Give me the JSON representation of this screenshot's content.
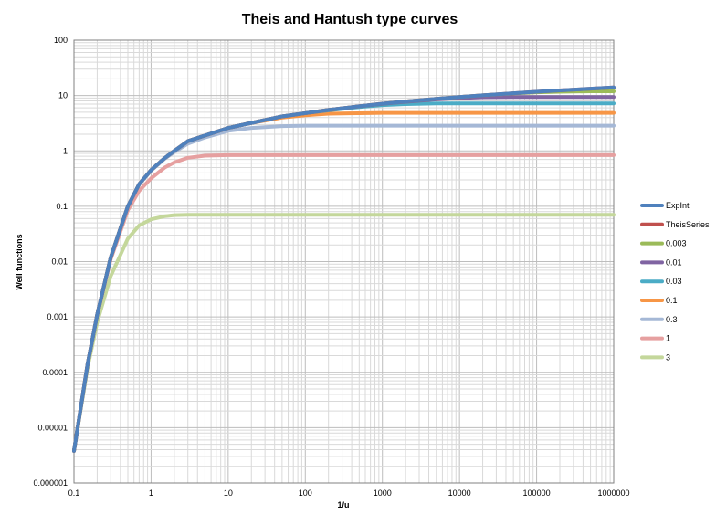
{
  "chart_data": {
    "type": "line",
    "title": "Theis and Hantush type curves",
    "xlabel": "1/u",
    "ylabel": "Well functions",
    "x_scale": "log",
    "y_scale": "log",
    "xlim": [
      0.1,
      1000000
    ],
    "ylim": [
      1e-06,
      100
    ],
    "x_ticks": [
      "0.1",
      "1",
      "10",
      "100",
      "1000",
      "10000",
      "100000",
      "1000000"
    ],
    "y_ticks": [
      "0.000001",
      "0.00001",
      "0.0001",
      "0.001",
      "0.01",
      "0.1",
      "1",
      "10",
      "100"
    ],
    "grid": true,
    "legend_position": "right",
    "x": [
      0.1,
      0.15,
      0.2,
      0.3,
      0.5,
      0.7,
      1,
      1.5,
      2,
      3,
      5,
      10,
      20,
      50,
      100,
      200,
      500,
      1000,
      2000,
      5000,
      10000,
      20000,
      50000,
      100000,
      200000,
      500000,
      1000000
    ],
    "series": [
      {
        "name": "ExpInt",
        "color": "#4f81bd",
        "values": [
          3.8e-06,
          0.00014,
          0.0011,
          0.012,
          0.1,
          0.25,
          0.45,
          0.74,
          1.0,
          1.5,
          1.9,
          2.6,
          3.2,
          4.2,
          4.8,
          5.5,
          6.4,
          7.1,
          7.8,
          8.7,
          9.4,
          10.1,
          11.0,
          11.7,
          12.4,
          13.3,
          14.0
        ]
      },
      {
        "name": "TheisSeries",
        "color": "#c0504d",
        "values": [
          3.8e-06,
          0.00014,
          0.0011,
          0.012,
          0.1,
          0.25,
          0.45,
          0.74,
          1.0,
          1.5,
          1.9,
          2.6,
          3.2,
          4.2,
          4.8,
          5.5,
          6.4,
          7.1,
          7.8,
          8.7,
          9.4,
          10.1,
          11.0,
          11.7,
          12.4,
          13.3,
          14.0
        ]
      },
      {
        "name": "0.003",
        "color": "#9bbb59",
        "values": [
          3.8e-06,
          0.00014,
          0.0011,
          0.012,
          0.1,
          0.25,
          0.45,
          0.74,
          1.0,
          1.5,
          1.9,
          2.6,
          3.2,
          4.2,
          4.8,
          5.5,
          6.4,
          7.1,
          7.8,
          8.7,
          9.4,
          10.1,
          10.9,
          11.4,
          11.7,
          11.9,
          11.9
        ]
      },
      {
        "name": "0.01",
        "color": "#8064a2",
        "values": [
          3.8e-06,
          0.00014,
          0.0011,
          0.012,
          0.1,
          0.25,
          0.45,
          0.74,
          1.0,
          1.5,
          1.9,
          2.6,
          3.2,
          4.2,
          4.8,
          5.5,
          6.4,
          7.1,
          7.7,
          8.5,
          9.0,
          9.3,
          9.4,
          9.4,
          9.4,
          9.4,
          9.4
        ]
      },
      {
        "name": "0.03",
        "color": "#4bacc6",
        "values": [
          3.8e-06,
          0.00014,
          0.0011,
          0.012,
          0.1,
          0.25,
          0.45,
          0.74,
          1.0,
          1.5,
          1.9,
          2.6,
          3.2,
          4.2,
          4.8,
          5.4,
          6.2,
          6.7,
          7.0,
          7.2,
          7.2,
          7.2,
          7.2,
          7.2,
          7.2,
          7.2,
          7.2
        ]
      },
      {
        "name": "0.1",
        "color": "#f79646",
        "values": [
          3.8e-06,
          0.00014,
          0.0011,
          0.012,
          0.1,
          0.25,
          0.45,
          0.74,
          1.0,
          1.5,
          1.9,
          2.6,
          3.2,
          4.0,
          4.4,
          4.7,
          4.8,
          4.85,
          4.85,
          4.85,
          4.85,
          4.85,
          4.85,
          4.85,
          4.85,
          4.85,
          4.85
        ]
      },
      {
        "name": "0.3",
        "color": "#a5b8d6",
        "values": [
          3.8e-06,
          0.00014,
          0.0011,
          0.012,
          0.1,
          0.25,
          0.44,
          0.72,
          0.95,
          1.35,
          1.75,
          2.3,
          2.6,
          2.8,
          2.85,
          2.85,
          2.85,
          2.85,
          2.85,
          2.85,
          2.85,
          2.85,
          2.85,
          2.85,
          2.85,
          2.85,
          2.85
        ]
      },
      {
        "name": "1",
        "color": "#e6a0a0",
        "values": [
          3.8e-06,
          0.00014,
          0.0011,
          0.011,
          0.085,
          0.19,
          0.32,
          0.5,
          0.62,
          0.75,
          0.82,
          0.84,
          0.84,
          0.84,
          0.84,
          0.84,
          0.84,
          0.84,
          0.84,
          0.84,
          0.84,
          0.84,
          0.84,
          0.84,
          0.84,
          0.84,
          0.84
        ]
      },
      {
        "name": "3",
        "color": "#c4d79b",
        "values": [
          3.8e-06,
          0.00012,
          0.0008,
          0.0055,
          0.026,
          0.045,
          0.058,
          0.066,
          0.069,
          0.07,
          0.07,
          0.07,
          0.07,
          0.07,
          0.07,
          0.07,
          0.07,
          0.07,
          0.07,
          0.07,
          0.07,
          0.07,
          0.07,
          0.07,
          0.07,
          0.07,
          0.07
        ]
      }
    ]
  }
}
